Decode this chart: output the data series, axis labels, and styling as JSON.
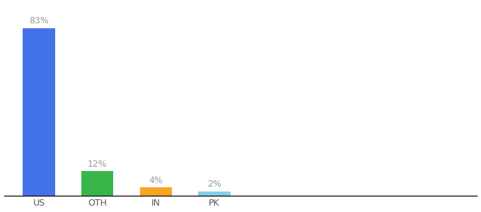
{
  "categories": [
    "US",
    "OTH",
    "IN",
    "PK"
  ],
  "values": [
    83,
    12,
    4,
    2
  ],
  "labels": [
    "83%",
    "12%",
    "4%",
    "2%"
  ],
  "bar_colors": [
    "#4472e8",
    "#3ab54a",
    "#f5a623",
    "#87ceeb"
  ],
  "background_color": "#ffffff",
  "ylim": [
    0,
    95
  ],
  "label_fontsize": 9,
  "tick_fontsize": 9,
  "label_color": "#999999",
  "tick_color": "#555555",
  "bar_width": 0.55,
  "xlim_left": -0.6,
  "xlim_right": 7.5
}
